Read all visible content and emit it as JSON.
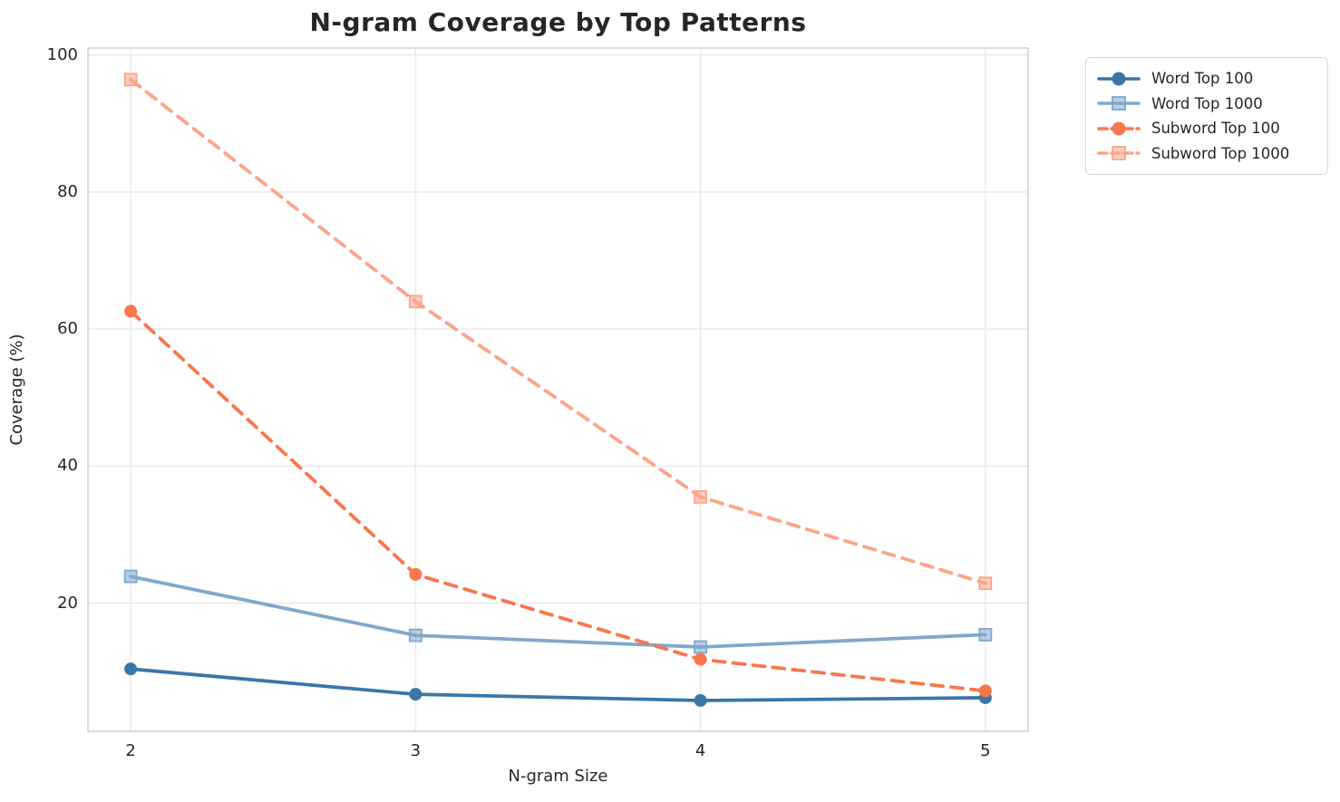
{
  "figure": {
    "background_color": "#ffffff",
    "text_color": "#262626",
    "grid_color": "#e9e9e9",
    "spine_color": "#cccccc",
    "legend_border_color": "#d9d9d9"
  },
  "chart_data": {
    "type": "line",
    "title": "N-gram Coverage by Top Patterns",
    "xlabel": "N-gram Size",
    "ylabel": "Coverage (%)",
    "x": [
      2,
      3,
      4,
      5
    ],
    "xtick_labels": [
      "2",
      "3",
      "4",
      "5"
    ],
    "yticks": [
      20,
      40,
      60,
      80,
      100
    ],
    "ytick_labels": [
      "20",
      "40",
      "60",
      "80",
      "100"
    ],
    "xlim": [
      1.85,
      5.15
    ],
    "ylim": [
      1.3,
      101
    ],
    "grid": true,
    "legend_position": "outside upper right",
    "series": [
      {
        "name": "Word Top 100",
        "color": "#3a76a8",
        "marker": "circle",
        "linestyle": "solid",
        "values": [
          10.4,
          6.7,
          5.8,
          6.2
        ]
      },
      {
        "name": "Word Top 1000",
        "color": "#7fa8cd",
        "marker": "square",
        "linestyle": "solid",
        "values": [
          23.9,
          15.3,
          13.6,
          15.4
        ]
      },
      {
        "name": "Subword Top 100",
        "color": "#f9764c",
        "marker": "circle",
        "linestyle": "dashed",
        "values": [
          62.6,
          24.2,
          11.8,
          7.2
        ]
      },
      {
        "name": "Subword Top 1000",
        "color": "#fca489",
        "marker": "square",
        "linestyle": "dashed",
        "values": [
          96.4,
          64.0,
          35.5,
          22.9
        ]
      }
    ]
  }
}
